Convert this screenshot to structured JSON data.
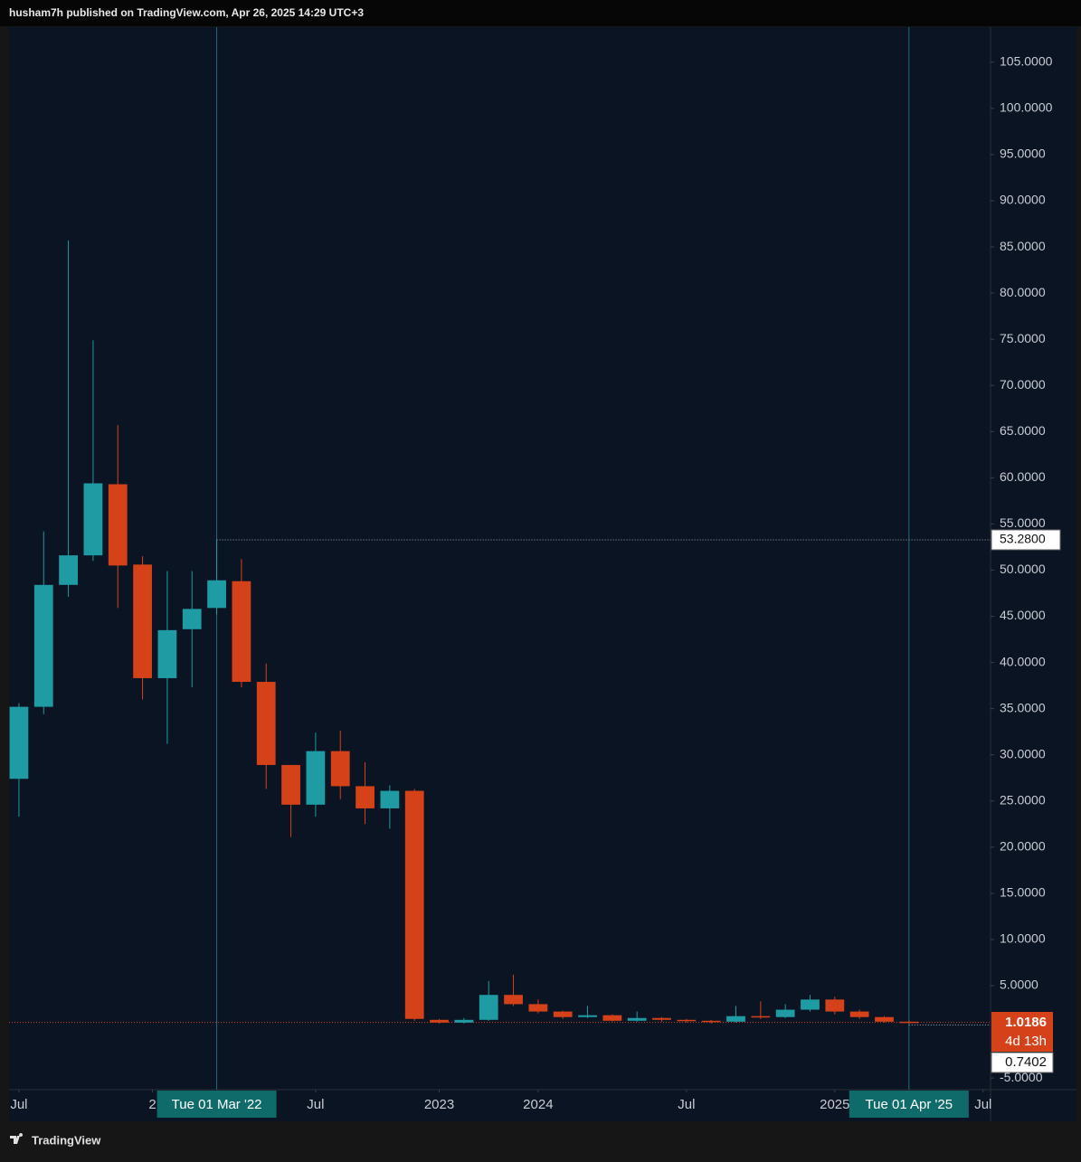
{
  "header": {
    "text": "husham7h published on TradingView.com, Apr 26, 2025 14:29 UTC+3"
  },
  "footer": {
    "brand": "TradingView"
  },
  "chart_data": {
    "type": "candlestick",
    "up_color": "#1f9ba3",
    "down_color": "#d5421a",
    "x": [
      0,
      1,
      2,
      3,
      4,
      5,
      6,
      7,
      8,
      9,
      10,
      11,
      12,
      13,
      14,
      15,
      16,
      17,
      18,
      19,
      20,
      21,
      22,
      23,
      24,
      25,
      26,
      27,
      28,
      29,
      30,
      31,
      32,
      33,
      34,
      35,
      36
    ],
    "open": [
      27.4,
      35.2,
      48.4,
      51.6,
      59.3,
      50.6,
      38.3,
      43.6,
      45.9,
      48.8,
      37.9,
      28.9,
      24.6,
      30.4,
      26.6,
      24.2,
      26.1,
      1.3,
      1.0,
      1.3,
      4.0,
      3.0,
      2.2,
      1.6,
      1.8,
      1.2,
      1.5,
      1.3,
      1.2,
      1.1,
      1.7,
      1.6,
      2.4,
      3.5,
      2.2,
      1.6,
      1.1
    ],
    "high": [
      35.6,
      54.2,
      85.7,
      74.9,
      65.7,
      51.5,
      49.9,
      49.9,
      53.3,
      51.2,
      39.9,
      28.9,
      32.4,
      32.6,
      29.2,
      26.7,
      26.3,
      1.4,
      1.5,
      5.5,
      6.2,
      3.5,
      2.3,
      2.8,
      1.9,
      2.2,
      1.6,
      1.4,
      1.3,
      2.8,
      3.3,
      3.0,
      4.0,
      3.8,
      2.4,
      1.7,
      1.2
    ],
    "low": [
      23.3,
      34.4,
      47.1,
      51.0,
      45.9,
      36.0,
      31.2,
      37.3,
      45.2,
      37.3,
      26.3,
      21.1,
      23.3,
      25.2,
      22.5,
      22.0,
      1.2,
      0.9,
      0.9,
      1.2,
      2.8,
      2.0,
      1.4,
      1.5,
      1.1,
      1.1,
      1.1,
      1.0,
      0.9,
      1.0,
      1.4,
      1.5,
      2.2,
      1.9,
      1.4,
      1.0,
      0.9
    ],
    "close": [
      35.2,
      48.4,
      51.6,
      59.4,
      50.5,
      38.3,
      43.5,
      45.8,
      48.9,
      37.9,
      28.9,
      24.6,
      30.4,
      26.6,
      24.2,
      26.1,
      1.4,
      1.0,
      1.3,
      4.0,
      3.0,
      2.2,
      1.6,
      1.8,
      1.2,
      1.5,
      1.3,
      1.2,
      1.1,
      1.7,
      1.6,
      2.4,
      3.5,
      2.2,
      1.6,
      1.1,
      1.0186
    ],
    "xlim": [
      -0.4,
      39.3
    ],
    "xticks": [
      {
        "value": 0,
        "label": "Jul"
      },
      {
        "value": 5.4,
        "label": "2"
      },
      {
        "value": 12,
        "label": "Jul"
      },
      {
        "value": 17,
        "label": "2023"
      },
      {
        "value": 21,
        "label": "2024"
      },
      {
        "value": 27,
        "label": "Jul"
      },
      {
        "value": 33,
        "label": "2025"
      },
      {
        "value": 39,
        "label": "Jul"
      }
    ],
    "ylim": [
      -6.26,
      108.8
    ],
    "yticks": [
      {
        "value": -5,
        "label": "-5.0000"
      },
      {
        "value": 5,
        "label": "5.0000"
      },
      {
        "value": 10,
        "label": "10.0000"
      },
      {
        "value": 15,
        "label": "15.0000"
      },
      {
        "value": 20,
        "label": "20.0000"
      },
      {
        "value": 25,
        "label": "25.0000"
      },
      {
        "value": 30,
        "label": "30.0000"
      },
      {
        "value": 35,
        "label": "35.0000"
      },
      {
        "value": 40,
        "label": "40.0000"
      },
      {
        "value": 45,
        "label": "45.0000"
      },
      {
        "value": 50,
        "label": "50.0000"
      },
      {
        "value": 55,
        "label": "55.0000"
      },
      {
        "value": 60,
        "label": "60.0000"
      },
      {
        "value": 65,
        "label": "65.0000"
      },
      {
        "value": 70,
        "label": "70.0000"
      },
      {
        "value": 75,
        "label": "75.0000"
      },
      {
        "value": 80,
        "label": "80.0000"
      },
      {
        "value": 85,
        "label": "85.0000"
      },
      {
        "value": 90,
        "label": "90.0000"
      },
      {
        "value": 95,
        "label": "95.0000"
      },
      {
        "value": 100,
        "label": "100.0000"
      },
      {
        "value": 105,
        "label": "105.0000"
      }
    ],
    "crosshair_x": [
      {
        "value": 8,
        "label": "Tue 01 Mar '22"
      },
      {
        "value": 36,
        "label": "Tue 01 Apr '25"
      }
    ],
    "crosshair_y": {
      "value": 53.28,
      "label": "53.2800"
    },
    "last_price": 1.0186,
    "countdown": "4d 13h",
    "cursor_price": 0.7402
  }
}
